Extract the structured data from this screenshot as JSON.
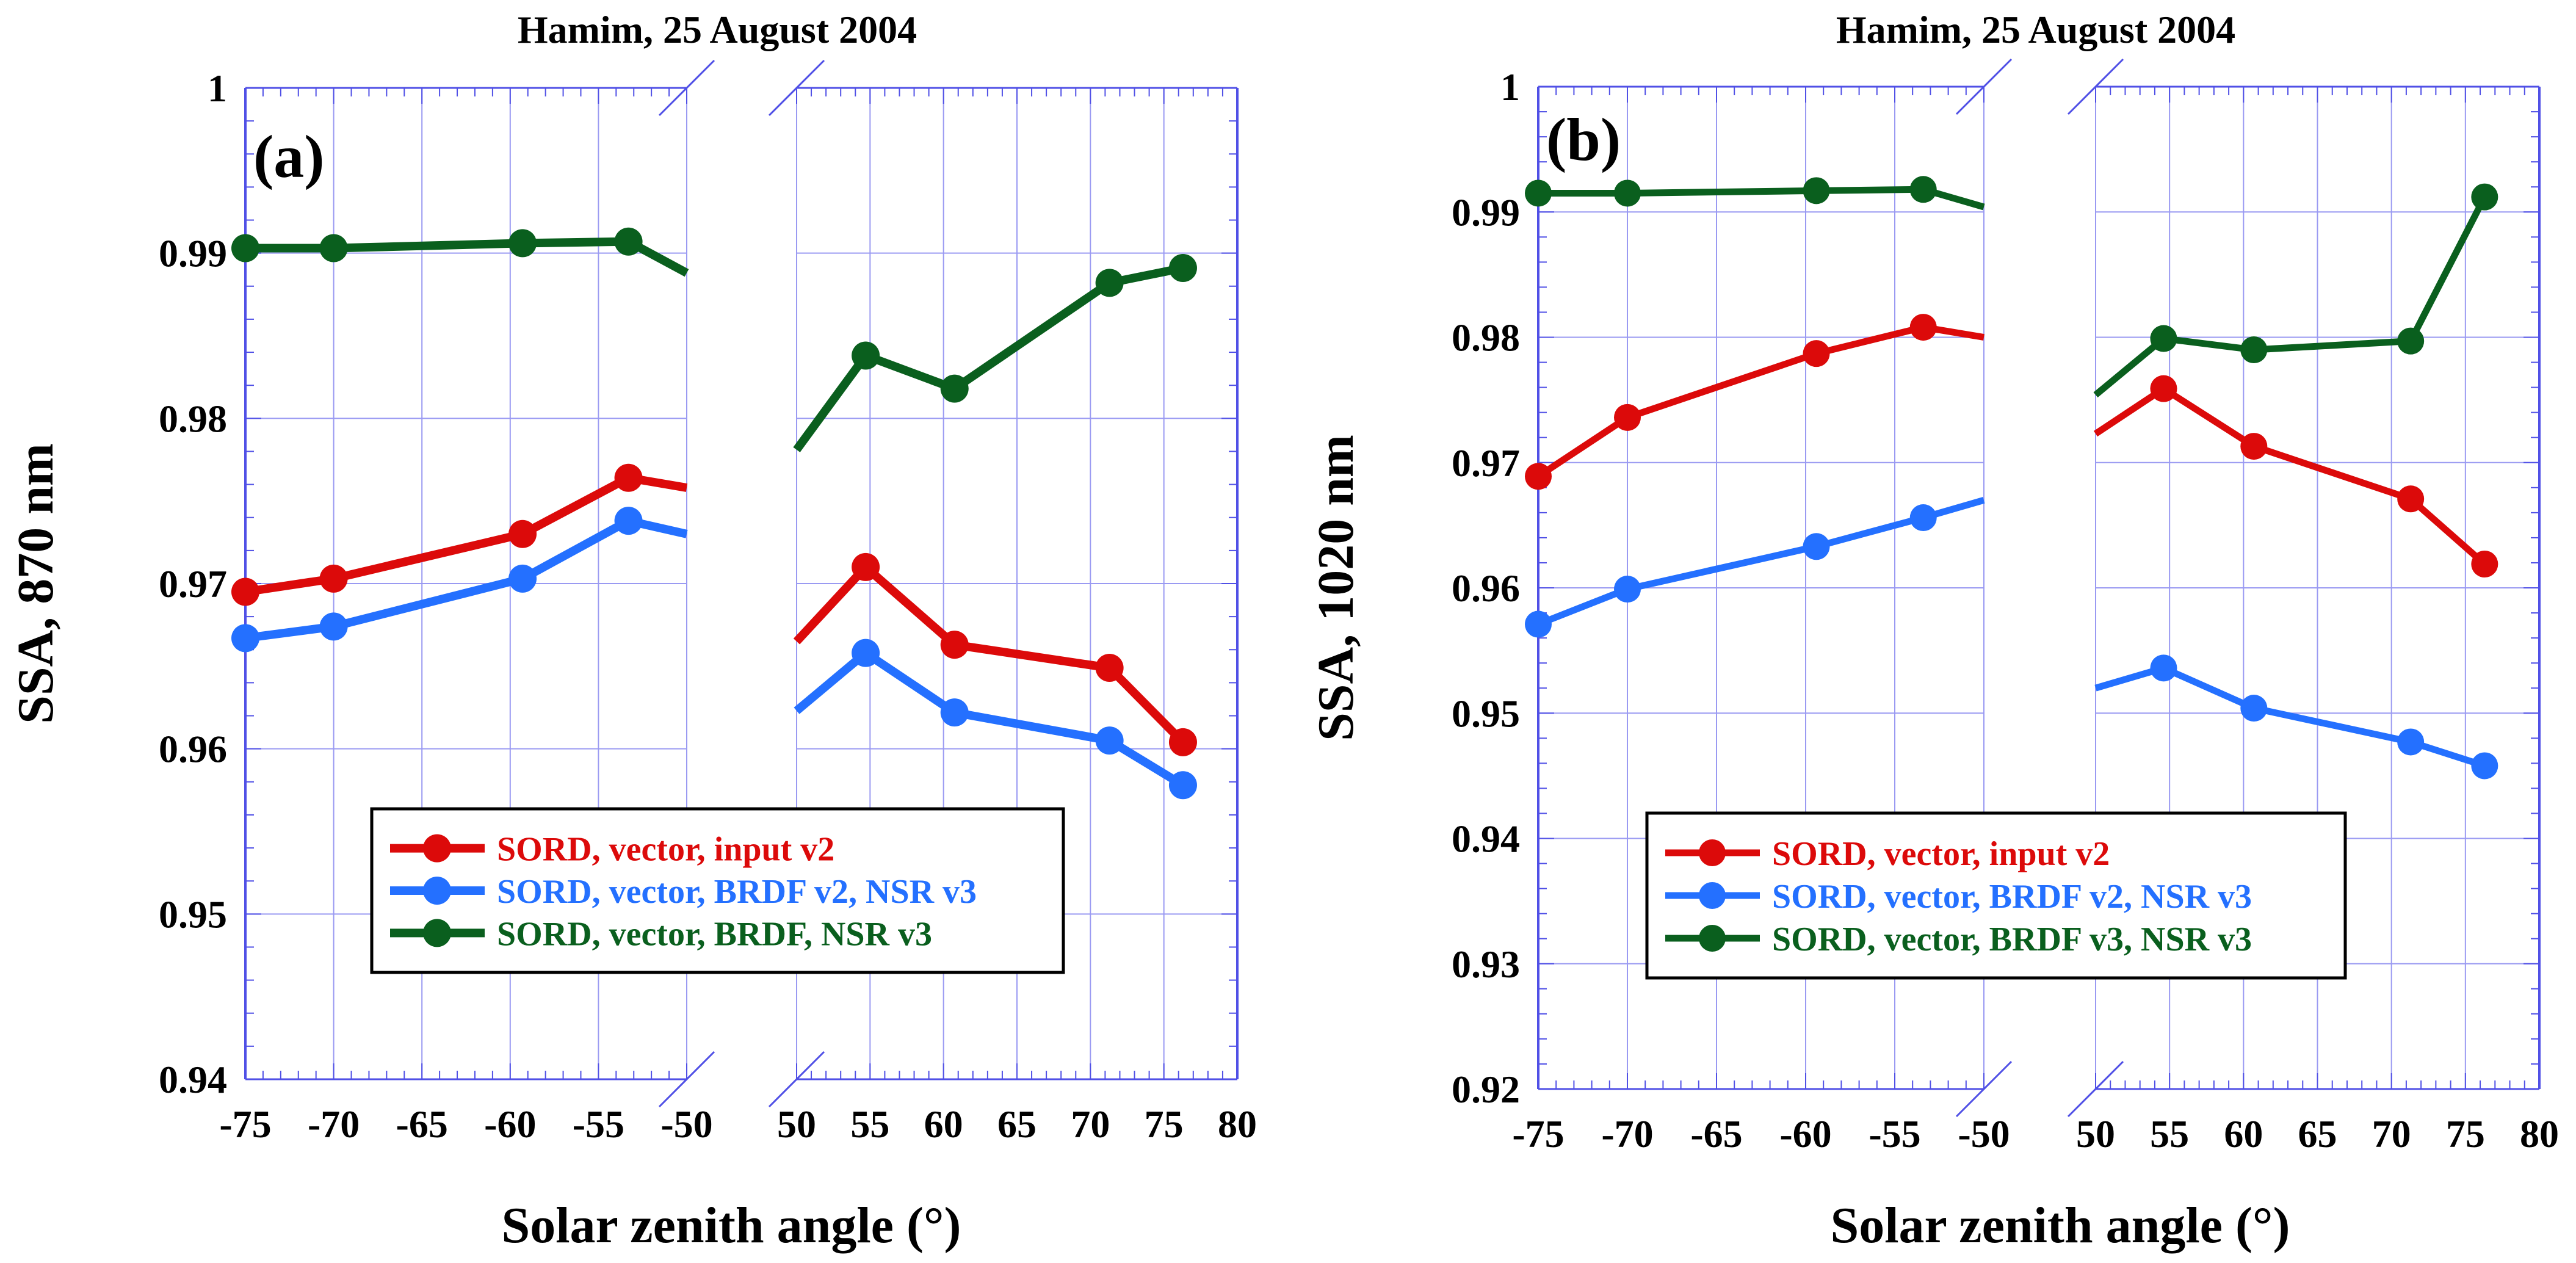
{
  "chart_data": [
    {
      "type": "line",
      "panel_label": "(a)",
      "title": "Hamim, 25 August 2004",
      "xlabel": "Solar zenith angle (°)",
      "ylabel": "SSA, 870 nm",
      "broken_x_axis": true,
      "x_segments": [
        {
          "xlim": [
            -75,
            -50
          ],
          "ticks": [
            -75,
            -70,
            -65,
            -60,
            -55,
            -50
          ],
          "tick_labels": [
            "-75",
            "-70",
            "-65",
            "-60",
            "-55",
            "-50"
          ]
        },
        {
          "xlim": [
            50,
            80
          ],
          "ticks": [
            50,
            55,
            60,
            65,
            70,
            75,
            80
          ],
          "tick_labels": [
            "50",
            "55",
            "60",
            "65",
            "70",
            "75",
            "80"
          ]
        }
      ],
      "ylim": [
        0.94,
        1.0
      ],
      "yticks": [
        0.94,
        0.95,
        0.96,
        0.97,
        0.98,
        0.99,
        1.0
      ],
      "ytick_labels": [
        "0.94",
        "0.95",
        "0.96",
        "0.97",
        "0.98",
        "0.99",
        "1"
      ],
      "grid": true,
      "legend_position": "lower-center",
      "series": [
        {
          "name": "SORD, vector, input v2",
          "color": "#dc0a0a",
          "segments": [
            {
              "x": [
                -75,
                -70,
                -59.3,
                -53.3,
                -50
              ],
              "y": [
                0.9695,
                0.9703,
                0.973,
                0.9764,
                0.9758
              ],
              "markers": [
                true,
                true,
                true,
                true,
                false
              ]
            },
            {
              "x": [
                50,
                54.7,
                60.75,
                71.3,
                76.3
              ],
              "y": [
                0.9665,
                0.971,
                0.9663,
                0.9649,
                0.9604
              ],
              "markers": [
                false,
                true,
                true,
                true,
                true
              ]
            }
          ]
        },
        {
          "name": "SORD, vector, BRDF v2, NSR v3",
          "color": "#2470ff",
          "segments": [
            {
              "x": [
                -75,
                -70,
                -59.3,
                -53.3,
                -50
              ],
              "y": [
                0.9667,
                0.9674,
                0.9703,
                0.9738,
                0.973
              ],
              "markers": [
                true,
                true,
                true,
                true,
                false
              ]
            },
            {
              "x": [
                50,
                54.7,
                60.75,
                71.3,
                76.3
              ],
              "y": [
                0.9623,
                0.9658,
                0.9622,
                0.9605,
                0.9578
              ],
              "markers": [
                false,
                true,
                true,
                true,
                true
              ]
            }
          ]
        },
        {
          "name": "SORD, vector, BRDF, NSR v3",
          "color": "#0a5f1e",
          "segments": [
            {
              "x": [
                -75,
                -70,
                -59.3,
                -53.3,
                -50
              ],
              "y": [
                0.9903,
                0.9903,
                0.9906,
                0.9907,
                0.9888
              ],
              "markers": [
                true,
                true,
                true,
                true,
                false
              ]
            },
            {
              "x": [
                50,
                54.7,
                60.75,
                71.3,
                76.3
              ],
              "y": [
                0.9781,
                0.9838,
                0.9818,
                0.9882,
                0.9891
              ],
              "markers": [
                false,
                true,
                true,
                true,
                true
              ]
            }
          ]
        }
      ]
    },
    {
      "type": "line",
      "panel_label": "(b)",
      "title": "Hamim, 25 August 2004",
      "xlabel": "Solar zenith angle (°)",
      "ylabel": "SSA, 1020 nm",
      "broken_x_axis": true,
      "x_segments": [
        {
          "xlim": [
            -75,
            -50
          ],
          "ticks": [
            -75,
            -70,
            -65,
            -60,
            -55,
            -50
          ],
          "tick_labels": [
            "-75",
            "-70",
            "-65",
            "-60",
            "-55",
            "-50"
          ]
        },
        {
          "xlim": [
            50,
            80
          ],
          "ticks": [
            50,
            55,
            60,
            65,
            70,
            75,
            80
          ],
          "tick_labels": [
            "50",
            "55",
            "60",
            "65",
            "70",
            "75",
            "80"
          ]
        }
      ],
      "ylim": [
        0.92,
        1.0
      ],
      "yticks": [
        0.92,
        0.93,
        0.94,
        0.95,
        0.96,
        0.97,
        0.98,
        0.99,
        1.0
      ],
      "ytick_labels": [
        "0.92",
        "0.93",
        "0.94",
        "0.95",
        "0.96",
        "0.97",
        "0.98",
        "0.99",
        "1"
      ],
      "grid": true,
      "legend_position": "lower-center",
      "series": [
        {
          "name": "SORD, vector, input v2",
          "color": "#dc0a0a",
          "segments": [
            {
              "x": [
                -75,
                -70,
                -59.4,
                -53.4,
                -50
              ],
              "y": [
                0.9689,
                0.9736,
                0.9787,
                0.9808,
                0.98
              ],
              "markers": [
                true,
                true,
                true,
                true,
                false
              ]
            },
            {
              "x": [
                50,
                54.6,
                60.7,
                71.3,
                76.3
              ],
              "y": [
                0.9723,
                0.9759,
                0.9713,
                0.9671,
                0.9619
              ],
              "markers": [
                false,
                true,
                true,
                true,
                true
              ]
            }
          ]
        },
        {
          "name": "SORD, vector, BRDF v2, NSR v3",
          "color": "#2470ff",
          "segments": [
            {
              "x": [
                -75,
                -70,
                -59.4,
                -53.4,
                -50
              ],
              "y": [
                0.9571,
                0.9599,
                0.9633,
                0.9656,
                0.967
              ],
              "markers": [
                true,
                true,
                true,
                true,
                false
              ]
            },
            {
              "x": [
                50,
                54.6,
                60.7,
                71.3,
                76.3
              ],
              "y": [
                0.952,
                0.9536,
                0.9504,
                0.9477,
                0.9458
              ],
              "markers": [
                false,
                true,
                true,
                true,
                true
              ]
            }
          ]
        },
        {
          "name": "SORD, vector, BRDF v3, NSR v3",
          "color": "#0a5f1e",
          "segments": [
            {
              "x": [
                -75,
                -70,
                -59.4,
                -53.4,
                -50
              ],
              "y": [
                0.9915,
                0.9915,
                0.9917,
                0.9918,
                0.9904
              ],
              "markers": [
                true,
                true,
                true,
                true,
                false
              ]
            },
            {
              "x": [
                50,
                54.6,
                60.7,
                71.3,
                76.3
              ],
              "y": [
                0.9754,
                0.9799,
                0.979,
                0.9797,
                0.9912
              ],
              "markers": [
                false,
                true,
                true,
                true,
                true
              ]
            }
          ]
        }
      ]
    }
  ],
  "style": {
    "axis_color": "#5050e6",
    "grid_color": "#9a9af2"
  }
}
